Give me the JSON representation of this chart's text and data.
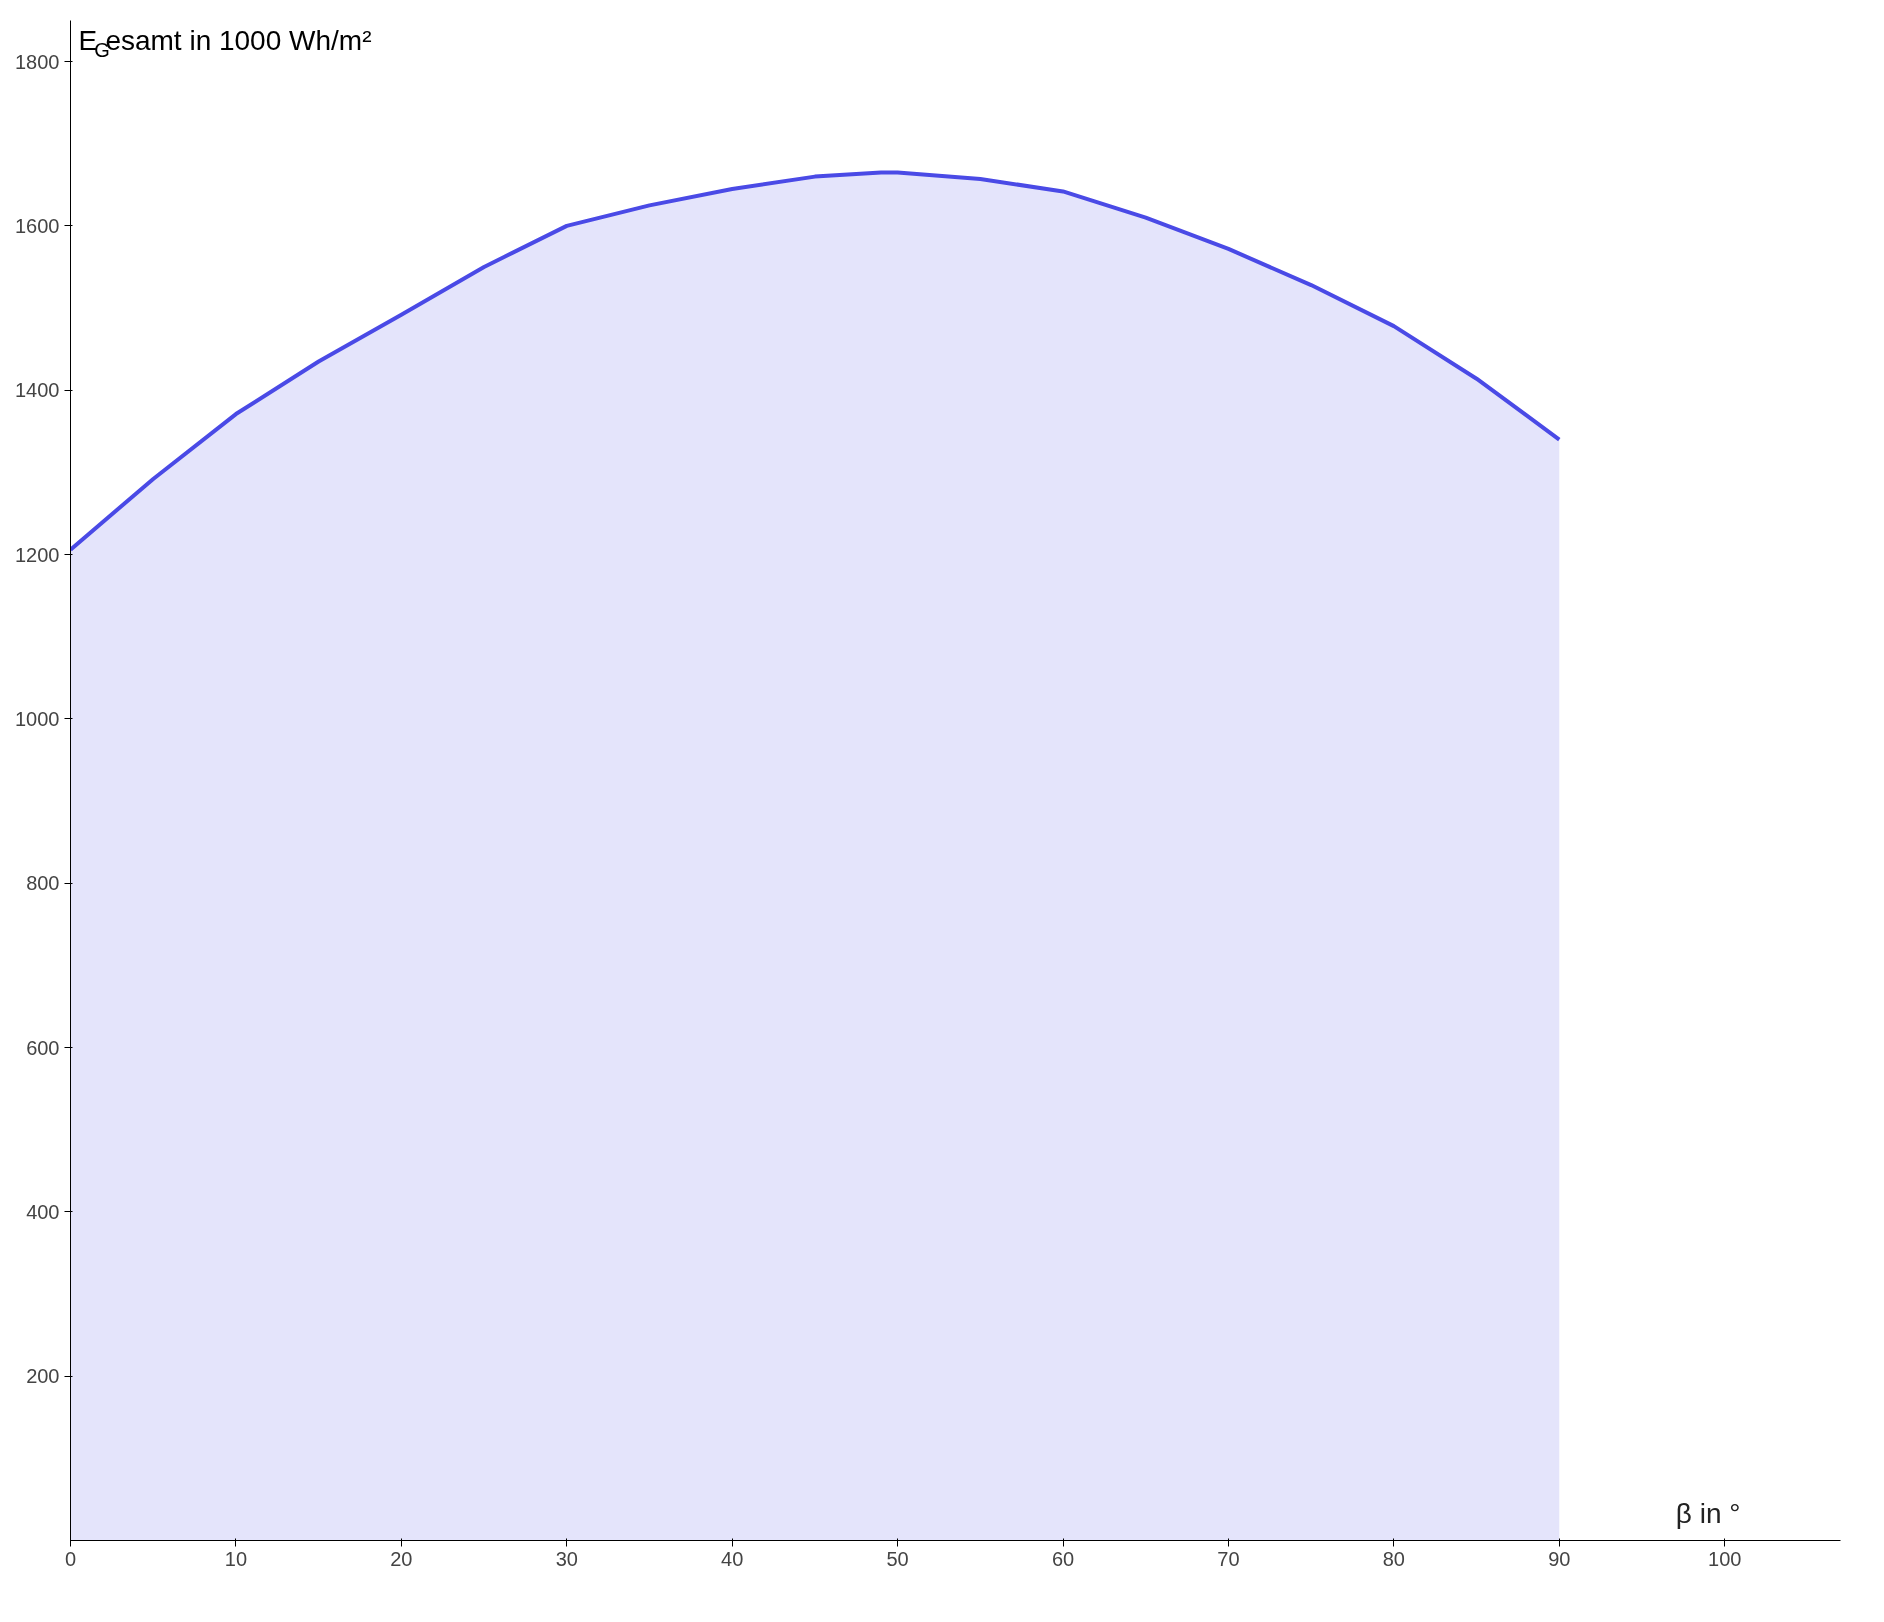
{
  "chart_data": {
    "type": "area",
    "xlabel": "β in °",
    "ylabel": "E$_{G}$esamt in 1000 Wh/m²",
    "x": [
      0,
      5,
      10,
      15,
      20,
      25,
      30,
      35,
      40,
      45,
      49,
      50,
      55,
      60,
      65,
      70,
      75,
      80,
      85,
      90
    ],
    "series": [
      {
        "color": "#4a4ae6",
        "values": [
          1206,
          1292,
          1371,
          1435,
          1492,
          1550,
          1600,
          1625,
          1645,
          1660,
          1665,
          1665,
          1657,
          1642,
          1610,
          1572,
          1528,
          1478,
          1414,
          1340
        ]
      }
    ],
    "xlim": [
      0,
      107
    ],
    "ylim": [
      0,
      1850
    ],
    "xticks": [
      0,
      10,
      20,
      30,
      40,
      50,
      60,
      70,
      80,
      90,
      100
    ],
    "yticks": [
      200,
      400,
      600,
      800,
      1000,
      1200,
      1400,
      1600,
      1800
    ],
    "grid": false
  }
}
